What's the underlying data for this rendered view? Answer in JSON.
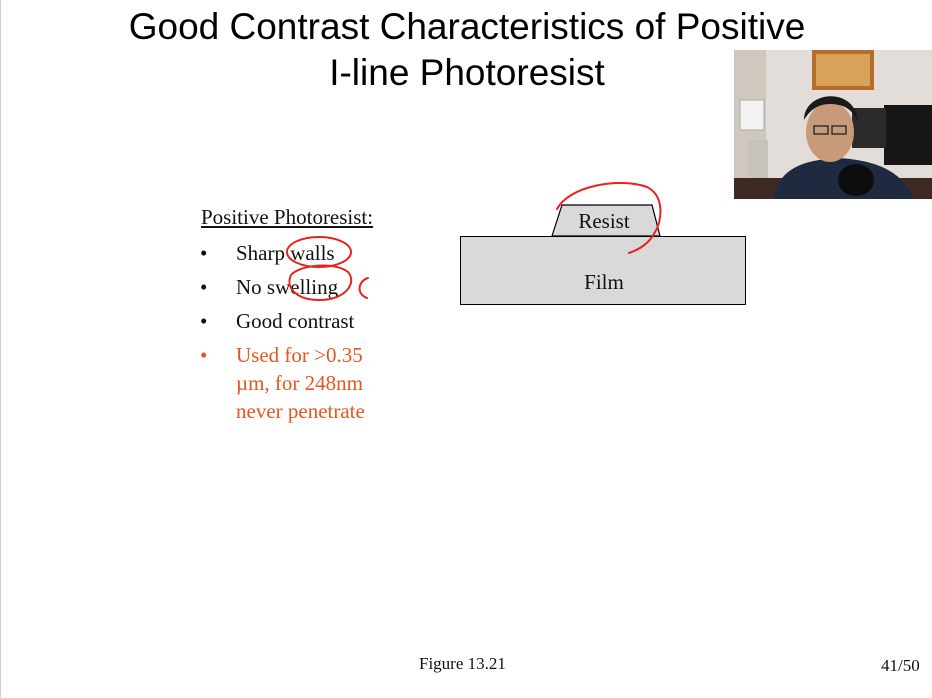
{
  "slide": {
    "title_line1": "Good Contrast Characteristics of Positive",
    "title_line2": "I-line Photoresist",
    "section_heading": "Positive Photoresist:",
    "bullet_symbol": "•",
    "bullets": [
      {
        "prefix": "Sharp ",
        "circled": "walls",
        "suffix": ""
      },
      {
        "prefix": "No s",
        "circled": "welling",
        "suffix": ""
      },
      {
        "text": "Good contrast"
      },
      {
        "line1": "Used for >0.35",
        "line2": "µm, for 248nm",
        "line3": "never penetrate",
        "color": "#e8541b"
      }
    ],
    "figure": {
      "resist_label": "Resist",
      "film_label": "Film"
    },
    "caption": "Figure 13.21",
    "page_number": "41/50"
  },
  "colors": {
    "annotation": "#e8231c",
    "highlight_text": "#e8541b",
    "film_fill": "#d9d9d9"
  }
}
